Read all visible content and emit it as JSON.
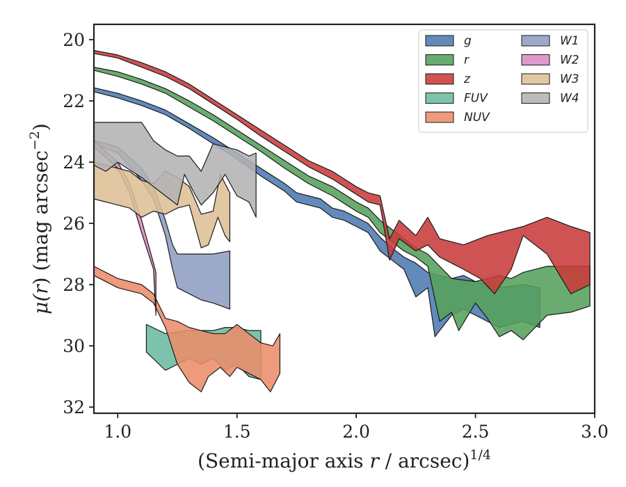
{
  "chart_data": {
    "type": "area",
    "xlabel_main": "(Semi-major axis ",
    "xlabel_var": "r",
    "xlabel_unit": " / arcsec)",
    "xlabel_exp": "1/4",
    "ylabel_mu": "μ(",
    "ylabel_var": "r",
    "ylabel_rest": ") (mag arcsec",
    "ylabel_exp": "−2",
    "ylabel_close": ")",
    "xlim": [
      0.9,
      3.0
    ],
    "ylim": [
      32.2,
      19.5
    ],
    "y_inverted": true,
    "xticks": [
      1.0,
      1.5,
      2.0,
      2.5,
      3.0
    ],
    "xtick_labels": [
      "1.0",
      "1.5",
      "2.0",
      "2.5",
      "3.0"
    ],
    "yticks": [
      20,
      22,
      24,
      26,
      28,
      30,
      32
    ],
    "ytick_labels": [
      "20",
      "22",
      "24",
      "26",
      "28",
      "30",
      "32"
    ],
    "grid": false,
    "legend_placement": "top-right",
    "legend_columns": 2,
    "series": [
      {
        "name": "g",
        "color": "#4c7ab0",
        "upper": [
          [
            0.9,
            21.57
          ],
          [
            1.0,
            21.75
          ],
          [
            1.1,
            22.0
          ],
          [
            1.2,
            22.3
          ],
          [
            1.3,
            22.75
          ],
          [
            1.4,
            23.2
          ],
          [
            1.5,
            23.7
          ],
          [
            1.6,
            24.2
          ],
          [
            1.7,
            24.7
          ],
          [
            1.75,
            25.0
          ],
          [
            1.8,
            25.1
          ],
          [
            1.85,
            25.2
          ],
          [
            1.9,
            25.5
          ],
          [
            1.95,
            25.6
          ],
          [
            2.0,
            25.8
          ],
          [
            2.05,
            26.0
          ],
          [
            2.1,
            26.45
          ],
          [
            2.15,
            26.8
          ],
          [
            2.2,
            27.1
          ],
          [
            2.25,
            27.3
          ],
          [
            2.3,
            27.6
          ],
          [
            2.35,
            27.7
          ],
          [
            2.4,
            27.8
          ],
          [
            2.45,
            27.7
          ],
          [
            2.5,
            27.9
          ],
          [
            2.6,
            28.1
          ],
          [
            2.7,
            28.0
          ],
          [
            2.77,
            28.1
          ]
        ],
        "lower": [
          [
            0.9,
            21.7
          ],
          [
            1.0,
            21.9
          ],
          [
            1.1,
            22.15
          ],
          [
            1.2,
            22.45
          ],
          [
            1.3,
            22.9
          ],
          [
            1.4,
            23.4
          ],
          [
            1.5,
            23.9
          ],
          [
            1.6,
            24.45
          ],
          [
            1.7,
            24.95
          ],
          [
            1.75,
            25.3
          ],
          [
            1.8,
            25.4
          ],
          [
            1.85,
            25.5
          ],
          [
            1.9,
            25.8
          ],
          [
            1.95,
            25.9
          ],
          [
            2.0,
            26.1
          ],
          [
            2.05,
            26.3
          ],
          [
            2.1,
            26.9
          ],
          [
            2.15,
            27.2
          ],
          [
            2.2,
            27.5
          ],
          [
            2.25,
            28.4
          ],
          [
            2.3,
            28.1
          ],
          [
            2.33,
            29.7
          ],
          [
            2.4,
            29.0
          ],
          [
            2.45,
            28.8
          ],
          [
            2.5,
            29.0
          ],
          [
            2.6,
            29.4
          ],
          [
            2.7,
            29.2
          ],
          [
            2.77,
            29.4
          ]
        ]
      },
      {
        "name": "r",
        "color": "#55a05b",
        "upper": [
          [
            0.9,
            20.9
          ],
          [
            1.0,
            21.05
          ],
          [
            1.1,
            21.3
          ],
          [
            1.2,
            21.6
          ],
          [
            1.3,
            22.0
          ],
          [
            1.4,
            22.45
          ],
          [
            1.5,
            22.95
          ],
          [
            1.6,
            23.45
          ],
          [
            1.7,
            23.95
          ],
          [
            1.8,
            24.45
          ],
          [
            1.9,
            24.8
          ],
          [
            2.0,
            25.3
          ],
          [
            2.05,
            25.5
          ],
          [
            2.1,
            25.9
          ],
          [
            2.15,
            26.2
          ],
          [
            2.2,
            26.5
          ],
          [
            2.25,
            26.8
          ],
          [
            2.3,
            27.0
          ],
          [
            2.35,
            27.4
          ],
          [
            2.4,
            27.8
          ],
          [
            2.5,
            27.9
          ],
          [
            2.6,
            27.7
          ],
          [
            2.65,
            27.8
          ],
          [
            2.7,
            27.6
          ],
          [
            2.8,
            27.4
          ],
          [
            2.9,
            27.4
          ],
          [
            2.98,
            27.4
          ]
        ],
        "lower": [
          [
            0.9,
            21.0
          ],
          [
            1.0,
            21.2
          ],
          [
            1.1,
            21.45
          ],
          [
            1.2,
            21.75
          ],
          [
            1.3,
            22.2
          ],
          [
            1.4,
            22.65
          ],
          [
            1.5,
            23.15
          ],
          [
            1.6,
            23.65
          ],
          [
            1.7,
            24.2
          ],
          [
            1.8,
            24.7
          ],
          [
            1.9,
            25.1
          ],
          [
            2.0,
            25.6
          ],
          [
            2.05,
            25.8
          ],
          [
            2.1,
            26.3
          ],
          [
            2.15,
            26.6
          ],
          [
            2.2,
            26.9
          ],
          [
            2.25,
            27.1
          ],
          [
            2.3,
            27.4
          ],
          [
            2.35,
            29.2
          ],
          [
            2.4,
            28.9
          ],
          [
            2.43,
            29.5
          ],
          [
            2.5,
            28.6
          ],
          [
            2.55,
            29.1
          ],
          [
            2.6,
            29.7
          ],
          [
            2.65,
            29.5
          ],
          [
            2.7,
            29.8
          ],
          [
            2.8,
            29.0
          ],
          [
            2.9,
            28.9
          ],
          [
            2.98,
            28.7
          ]
        ]
      },
      {
        "name": "z",
        "color": "#c83b3b",
        "upper": [
          [
            0.9,
            20.35
          ],
          [
            1.0,
            20.5
          ],
          [
            1.1,
            20.75
          ],
          [
            1.2,
            21.05
          ],
          [
            1.3,
            21.45
          ],
          [
            1.4,
            21.95
          ],
          [
            1.5,
            22.45
          ],
          [
            1.6,
            22.95
          ],
          [
            1.7,
            23.45
          ],
          [
            1.8,
            23.95
          ],
          [
            1.9,
            24.3
          ],
          [
            2.0,
            24.8
          ],
          [
            2.05,
            25.0
          ],
          [
            2.1,
            25.1
          ],
          [
            2.14,
            26.5
          ],
          [
            2.18,
            25.9
          ],
          [
            2.25,
            26.4
          ],
          [
            2.3,
            25.8
          ],
          [
            2.35,
            26.5
          ],
          [
            2.45,
            26.7
          ],
          [
            2.55,
            26.4
          ],
          [
            2.7,
            26.1
          ],
          [
            2.8,
            25.8
          ],
          [
            2.9,
            26.1
          ],
          [
            2.98,
            26.3
          ]
        ],
        "lower": [
          [
            0.9,
            20.45
          ],
          [
            1.0,
            20.6
          ],
          [
            1.1,
            20.9
          ],
          [
            1.2,
            21.2
          ],
          [
            1.3,
            21.6
          ],
          [
            1.4,
            22.1
          ],
          [
            1.5,
            22.6
          ],
          [
            1.6,
            23.15
          ],
          [
            1.7,
            23.65
          ],
          [
            1.8,
            24.15
          ],
          [
            1.9,
            24.55
          ],
          [
            2.0,
            25.05
          ],
          [
            2.05,
            25.3
          ],
          [
            2.1,
            25.4
          ],
          [
            2.14,
            27.2
          ],
          [
            2.18,
            26.5
          ],
          [
            2.25,
            26.9
          ],
          [
            2.3,
            26.7
          ],
          [
            2.35,
            27.1
          ],
          [
            2.45,
            27.5
          ],
          [
            2.52,
            27.8
          ],
          [
            2.58,
            28.3
          ],
          [
            2.65,
            27.5
          ],
          [
            2.7,
            26.4
          ],
          [
            2.8,
            27.0
          ],
          [
            2.9,
            28.3
          ],
          [
            2.98,
            28.0
          ]
        ]
      },
      {
        "name": "FUV",
        "color": "#6bbba0",
        "upper": [
          [
            1.12,
            29.3
          ],
          [
            1.2,
            29.6
          ],
          [
            1.3,
            29.5
          ],
          [
            1.4,
            29.5
          ],
          [
            1.45,
            29.4
          ],
          [
            1.5,
            29.4
          ],
          [
            1.55,
            29.5
          ],
          [
            1.6,
            29.5
          ]
        ],
        "lower": [
          [
            1.12,
            30.2
          ],
          [
            1.2,
            30.8
          ],
          [
            1.25,
            30.6
          ],
          [
            1.3,
            30.4
          ],
          [
            1.35,
            30.6
          ],
          [
            1.4,
            30.4
          ],
          [
            1.45,
            30.8
          ],
          [
            1.5,
            30.6
          ],
          [
            1.55,
            31.0
          ],
          [
            1.6,
            31.1
          ]
        ]
      },
      {
        "name": "NUV",
        "color": "#ea8d6a",
        "upper": [
          [
            0.9,
            27.4
          ],
          [
            1.0,
            27.8
          ],
          [
            1.1,
            28.0
          ],
          [
            1.15,
            28.3
          ],
          [
            1.2,
            29.1
          ],
          [
            1.25,
            29.2
          ],
          [
            1.3,
            29.4
          ],
          [
            1.35,
            29.5
          ],
          [
            1.4,
            29.6
          ],
          [
            1.45,
            29.6
          ],
          [
            1.5,
            29.3
          ],
          [
            1.55,
            29.6
          ],
          [
            1.6,
            29.9
          ],
          [
            1.65,
            30.0
          ],
          [
            1.68,
            29.6
          ]
        ],
        "lower": [
          [
            0.9,
            27.7
          ],
          [
            1.0,
            28.1
          ],
          [
            1.1,
            28.3
          ],
          [
            1.15,
            28.6
          ],
          [
            1.2,
            29.4
          ],
          [
            1.25,
            30.6
          ],
          [
            1.3,
            31.2
          ],
          [
            1.35,
            31.5
          ],
          [
            1.38,
            31.0
          ],
          [
            1.43,
            30.7
          ],
          [
            1.47,
            31.0
          ],
          [
            1.5,
            30.7
          ],
          [
            1.55,
            30.9
          ],
          [
            1.6,
            31.1
          ],
          [
            1.64,
            31.5
          ],
          [
            1.68,
            30.9
          ]
        ]
      },
      {
        "name": "W1",
        "color": "#8e9dc2",
        "upper": [
          [
            0.9,
            23.3
          ],
          [
            1.0,
            23.5
          ],
          [
            1.1,
            24.2
          ],
          [
            1.15,
            24.8
          ],
          [
            1.2,
            25.9
          ],
          [
            1.23,
            26.7
          ],
          [
            1.25,
            27.0
          ],
          [
            1.3,
            27.0
          ],
          [
            1.35,
            27.0
          ],
          [
            1.4,
            27.0
          ],
          [
            1.47,
            26.9
          ]
        ],
        "lower": [
          [
            0.9,
            23.4
          ],
          [
            1.0,
            23.7
          ],
          [
            1.1,
            24.6
          ],
          [
            1.15,
            25.2
          ],
          [
            1.2,
            26.4
          ],
          [
            1.23,
            27.5
          ],
          [
            1.25,
            28.1
          ],
          [
            1.3,
            28.3
          ],
          [
            1.35,
            28.5
          ],
          [
            1.4,
            28.6
          ],
          [
            1.47,
            28.8
          ]
        ]
      },
      {
        "name": "W2",
        "color": "#d98bc3",
        "upper": [
          [
            0.9,
            23.3
          ],
          [
            1.0,
            24.0
          ],
          [
            1.05,
            24.7
          ],
          [
            1.1,
            25.9
          ],
          [
            1.15,
            27.3
          ],
          [
            1.16,
            27.6
          ]
        ],
        "lower": [
          [
            0.9,
            23.5
          ],
          [
            1.0,
            24.2
          ],
          [
            1.05,
            25.0
          ],
          [
            1.1,
            26.3
          ],
          [
            1.15,
            27.5
          ],
          [
            1.16,
            29.0
          ]
        ]
      },
      {
        "name": "W3",
        "color": "#ddbf95",
        "upper": [
          [
            0.9,
            24.0
          ],
          [
            1.0,
            24.2
          ],
          [
            1.05,
            24.3
          ],
          [
            1.1,
            24.6
          ],
          [
            1.15,
            24.7
          ],
          [
            1.2,
            24.3
          ],
          [
            1.25,
            24.5
          ],
          [
            1.3,
            24.8
          ],
          [
            1.35,
            25.7
          ],
          [
            1.4,
            25.6
          ],
          [
            1.43,
            24.4
          ],
          [
            1.47,
            25.0
          ]
        ],
        "lower": [
          [
            0.9,
            25.2
          ],
          [
            1.0,
            25.4
          ],
          [
            1.05,
            25.5
          ],
          [
            1.1,
            25.8
          ],
          [
            1.15,
            25.6
          ],
          [
            1.2,
            25.7
          ],
          [
            1.25,
            25.5
          ],
          [
            1.3,
            25.4
          ],
          [
            1.35,
            26.8
          ],
          [
            1.38,
            26.7
          ],
          [
            1.42,
            25.8
          ],
          [
            1.45,
            26.4
          ],
          [
            1.47,
            26.6
          ]
        ]
      },
      {
        "name": "W4",
        "color": "#b3b3b3",
        "upper": [
          [
            0.9,
            22.7
          ],
          [
            1.0,
            22.7
          ],
          [
            1.1,
            22.7
          ],
          [
            1.15,
            23.3
          ],
          [
            1.2,
            23.6
          ],
          [
            1.25,
            23.8
          ],
          [
            1.3,
            23.8
          ],
          [
            1.35,
            24.3
          ],
          [
            1.4,
            23.4
          ],
          [
            1.45,
            23.5
          ],
          [
            1.5,
            23.6
          ],
          [
            1.55,
            23.8
          ],
          [
            1.58,
            23.7
          ]
        ],
        "lower": [
          [
            0.9,
            24.1
          ],
          [
            0.95,
            24.3
          ],
          [
            1.0,
            24.0
          ],
          [
            1.1,
            24.5
          ],
          [
            1.2,
            25.1
          ],
          [
            1.25,
            25.4
          ],
          [
            1.28,
            24.4
          ],
          [
            1.32,
            25.0
          ],
          [
            1.35,
            25.4
          ],
          [
            1.4,
            25.0
          ],
          [
            1.45,
            24.4
          ],
          [
            1.5,
            25.1
          ],
          [
            1.55,
            25.3
          ],
          [
            1.58,
            25.8
          ]
        ]
      }
    ]
  }
}
